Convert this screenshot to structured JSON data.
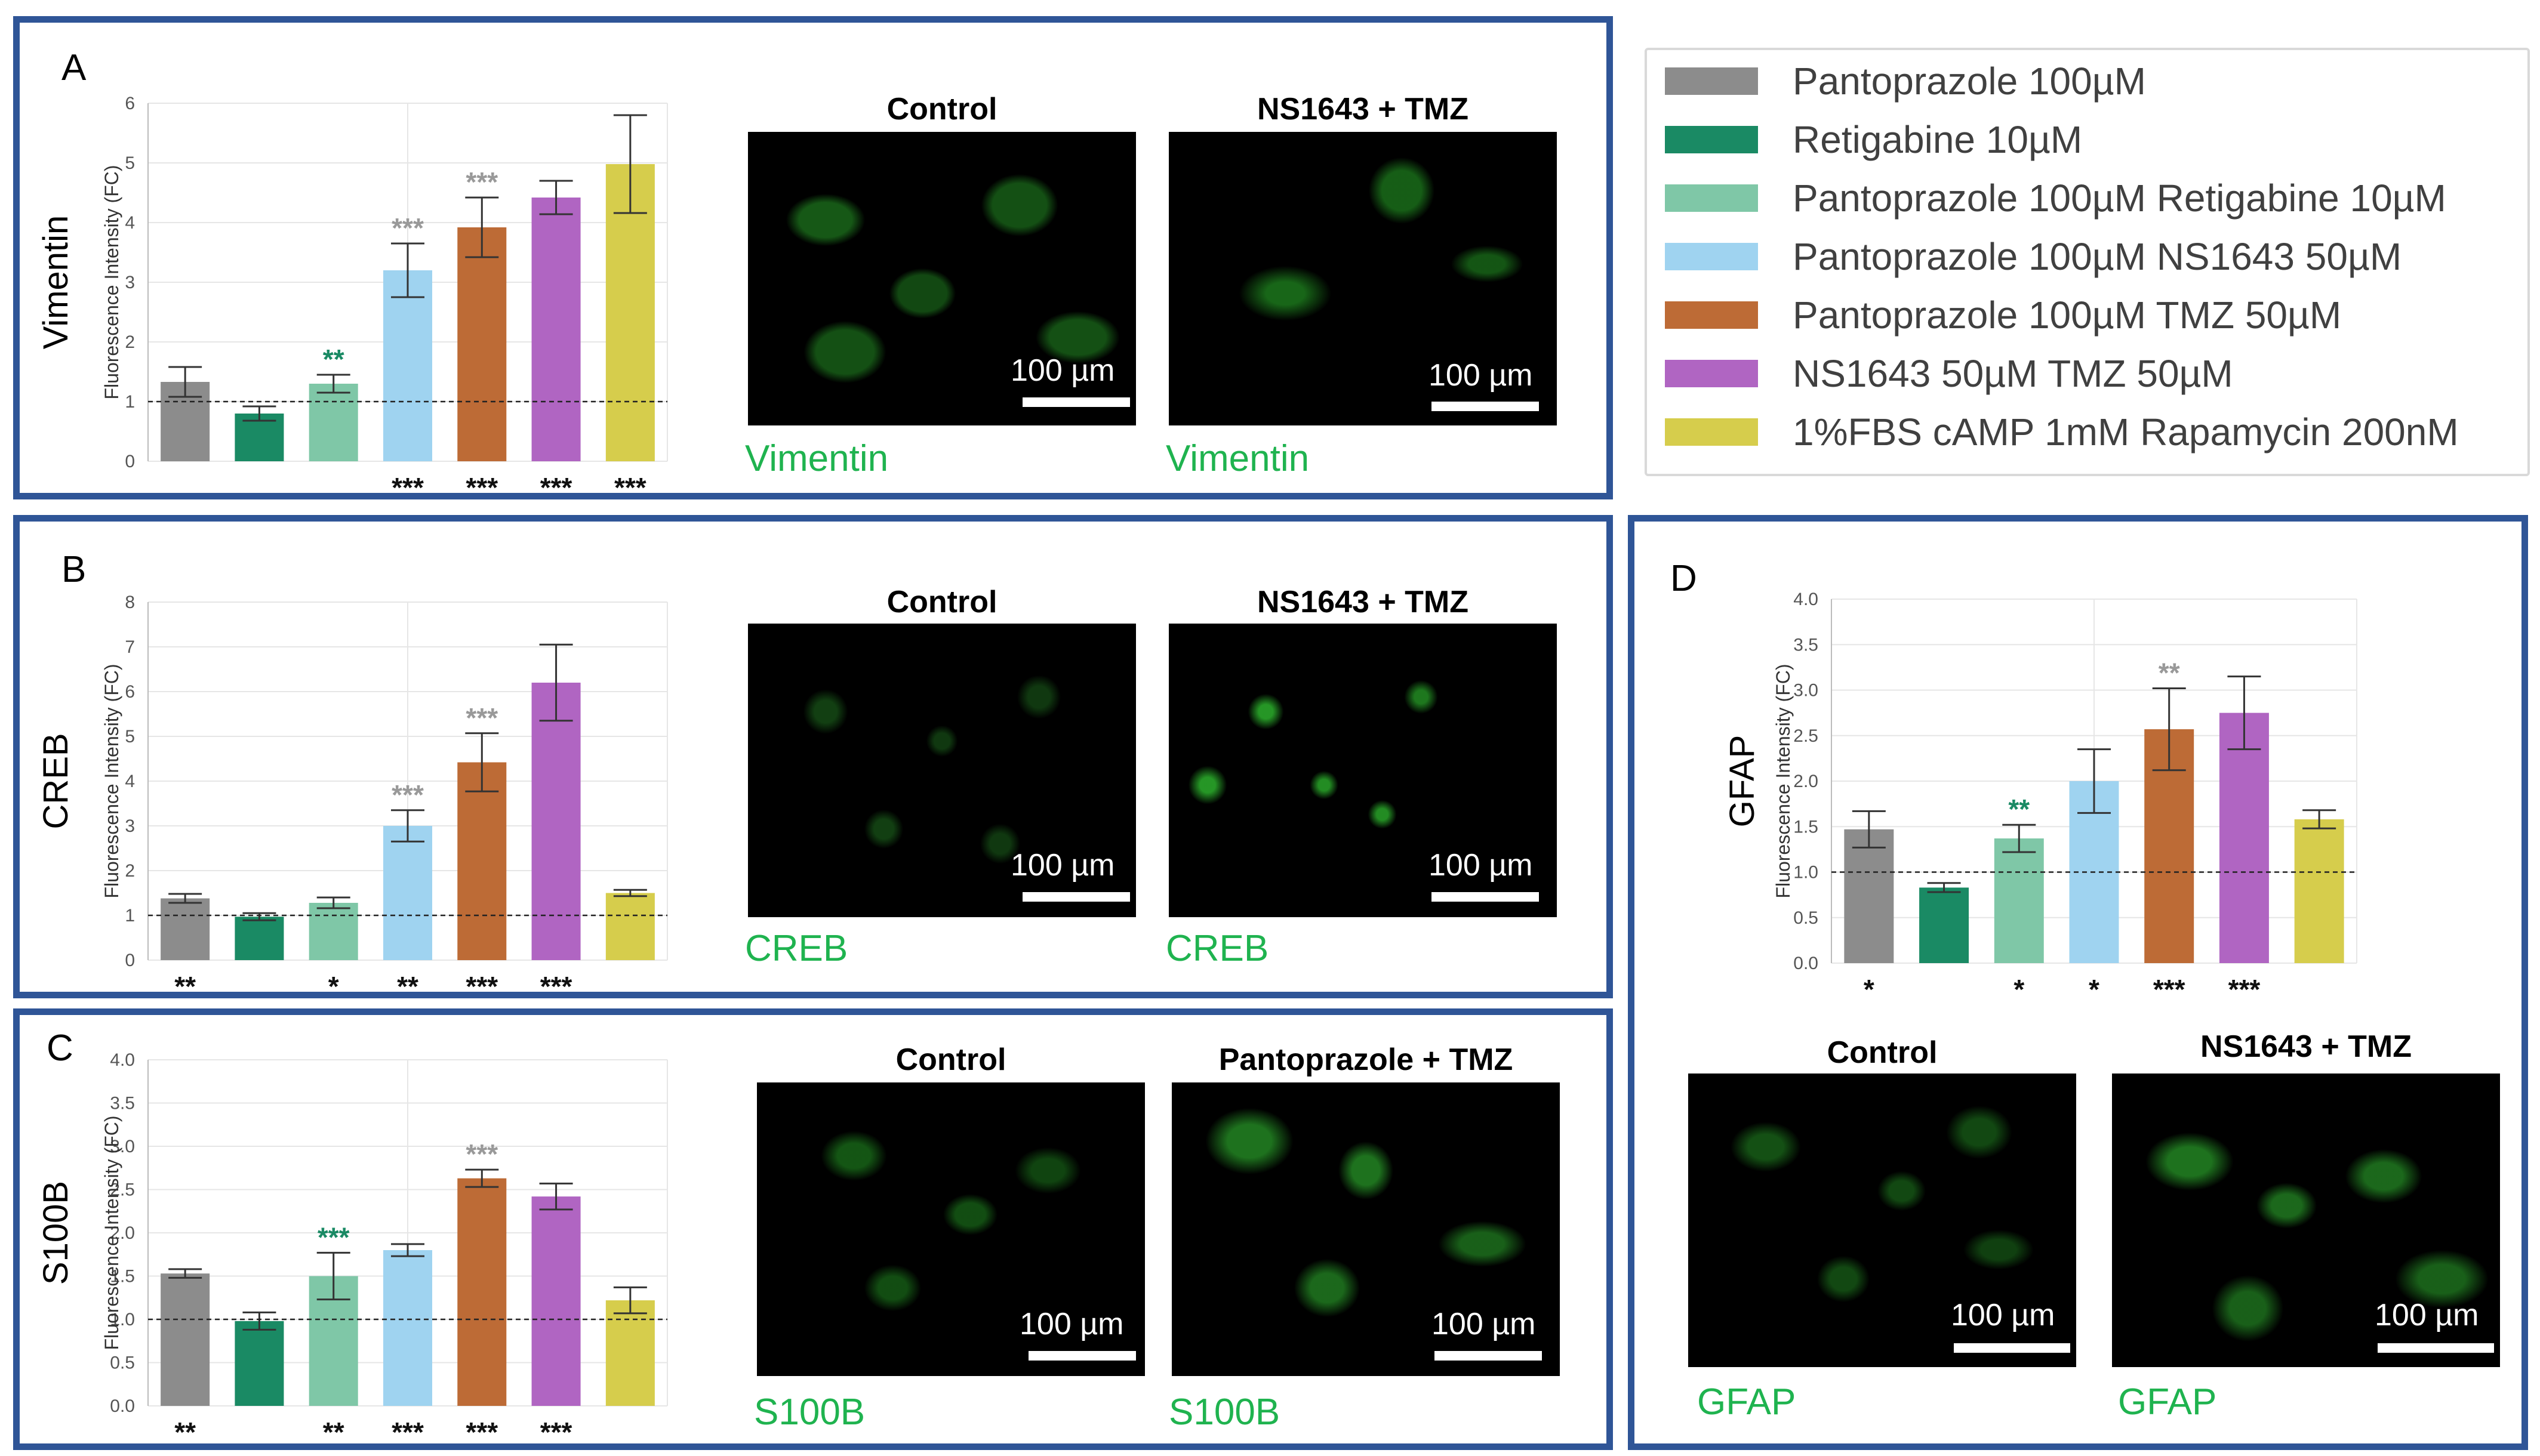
{
  "legend": [
    {
      "label": "Pantoprazole 100µM",
      "color": "#8c8c8c"
    },
    {
      "label": "Retigabine 10µM",
      "color": "#1a8a64"
    },
    {
      "label": "Pantoprazole 100µM Retigabine 10µM",
      "color": "#7fc7a7"
    },
    {
      "label": "Pantoprazole 100µM NS1643 50µM",
      "color": "#9fd3f0"
    },
    {
      "label": "Pantoprazole 100µM TMZ 50µM",
      "color": "#bd6b36"
    },
    {
      "label": "NS1643 50µM TMZ 50µM",
      "color": "#b065c2"
    },
    {
      "label": "1%FBS cAMP 1mM Rapamycin 200nM",
      "color": "#d6cd4c"
    }
  ],
  "panels": [
    {
      "letter": "A",
      "marker": "Vimentin",
      "images": [
        {
          "title": "Control",
          "scale": "100 µm",
          "marker": "Vimentin"
        },
        {
          "title": "NS1643 + TMZ",
          "scale": "100 µm",
          "marker": "Vimentin"
        }
      ]
    },
    {
      "letter": "B",
      "marker": "CREB",
      "images": [
        {
          "title": "Control",
          "scale": "100 µm",
          "marker": "CREB"
        },
        {
          "title": "NS1643 + TMZ",
          "scale": "100 µm",
          "marker": "CREB"
        }
      ]
    },
    {
      "letter": "C",
      "marker": "S100B",
      "images": [
        {
          "title": "Control",
          "scale": "100 µm",
          "marker": "S100B"
        },
        {
          "title": "Pantoprazole + TMZ",
          "scale": "100 µm",
          "marker": "S100B"
        }
      ]
    },
    {
      "letter": "D",
      "marker": "GFAP",
      "images": [
        {
          "title": "Control",
          "scale": "100 µm",
          "marker": "GFAP"
        },
        {
          "title": "NS1643 + TMZ",
          "scale": "100 µm",
          "marker": "GFAP"
        }
      ]
    }
  ],
  "chart_data": [
    {
      "type": "bar",
      "panel": "A",
      "ylabel": "Fluorescence Intensity (FC)",
      "marker": "Vimentin",
      "ylim": [
        0,
        6
      ],
      "yticks": [
        "0",
        "1",
        "2",
        "3",
        "4",
        "5",
        "6"
      ],
      "values": [
        1.33,
        0.8,
        1.3,
        3.2,
        3.92,
        4.42,
        4.98
      ],
      "errors": [
        0.25,
        0.12,
        0.15,
        0.45,
        0.5,
        0.28,
        0.82
      ],
      "above_stars": [
        "",
        "",
        "**",
        "***",
        "***",
        "",
        ""
      ],
      "above_star_colors": [
        "",
        "",
        "#1a8a64",
        "#999999",
        "#999999",
        "",
        ""
      ],
      "below_stars": [
        "",
        "",
        "",
        "***",
        "***",
        "***",
        "***"
      ],
      "reference_line": 1,
      "grid": true
    },
    {
      "type": "bar",
      "panel": "B",
      "ylabel": "Fluorescence Intensity (FC)",
      "marker": "CREB",
      "ylim": [
        0,
        8
      ],
      "yticks": [
        "0",
        "1",
        "2",
        "3",
        "4",
        "5",
        "6",
        "7",
        "8"
      ],
      "values": [
        1.38,
        0.97,
        1.28,
        3.0,
        4.42,
        6.2,
        1.5
      ],
      "errors": [
        0.1,
        0.08,
        0.12,
        0.35,
        0.65,
        0.85,
        0.07
      ],
      "above_stars": [
        "",
        "",
        "",
        "***",
        "***",
        "",
        ""
      ],
      "above_star_colors": [
        "",
        "",
        "",
        "#999999",
        "#999999",
        "",
        ""
      ],
      "below_stars": [
        "**",
        "",
        "*",
        "**",
        "***",
        "***",
        ""
      ],
      "reference_line": 1,
      "grid": true
    },
    {
      "type": "bar",
      "panel": "C",
      "ylabel": "Fluorescence Intensity (FC)",
      "marker": "S100B",
      "ylim": [
        0,
        4
      ],
      "yticks": [
        "0.0",
        "0.5",
        "1.0",
        "1.5",
        "2.0",
        "2.5",
        "3.0",
        "3.5",
        "4.0"
      ],
      "values": [
        1.53,
        0.98,
        1.5,
        1.8,
        2.63,
        2.42,
        1.22
      ],
      "errors": [
        0.05,
        0.1,
        0.27,
        0.07,
        0.1,
        0.15,
        0.15
      ],
      "above_stars": [
        "",
        "",
        "***",
        "",
        "***",
        "",
        ""
      ],
      "above_star_colors": [
        "",
        "",
        "#1a8a64",
        "",
        "#999999",
        "",
        ""
      ],
      "below_stars": [
        "**",
        "",
        "**",
        "***",
        "***",
        "***",
        ""
      ],
      "reference_line": 1,
      "grid": true
    },
    {
      "type": "bar",
      "panel": "D",
      "ylabel": "Fluorescence Intensity (FC)",
      "marker": "GFAP",
      "ylim": [
        0,
        4
      ],
      "yticks": [
        "0.0",
        "0.5",
        "1.0",
        "1.5",
        "2.0",
        "2.5",
        "3.0",
        "3.5",
        "4.0"
      ],
      "values": [
        1.47,
        0.83,
        1.37,
        2.0,
        2.57,
        2.75,
        1.58
      ],
      "errors": [
        0.2,
        0.05,
        0.15,
        0.35,
        0.45,
        0.4,
        0.1
      ],
      "above_stars": [
        "",
        "",
        "**",
        "",
        "**",
        "",
        ""
      ],
      "above_star_colors": [
        "",
        "",
        "#1a8a64",
        "",
        "#999999",
        "",
        ""
      ],
      "below_stars": [
        "*",
        "",
        "*",
        "*",
        "***",
        "***",
        ""
      ],
      "reference_line": 1,
      "grid": true
    }
  ]
}
